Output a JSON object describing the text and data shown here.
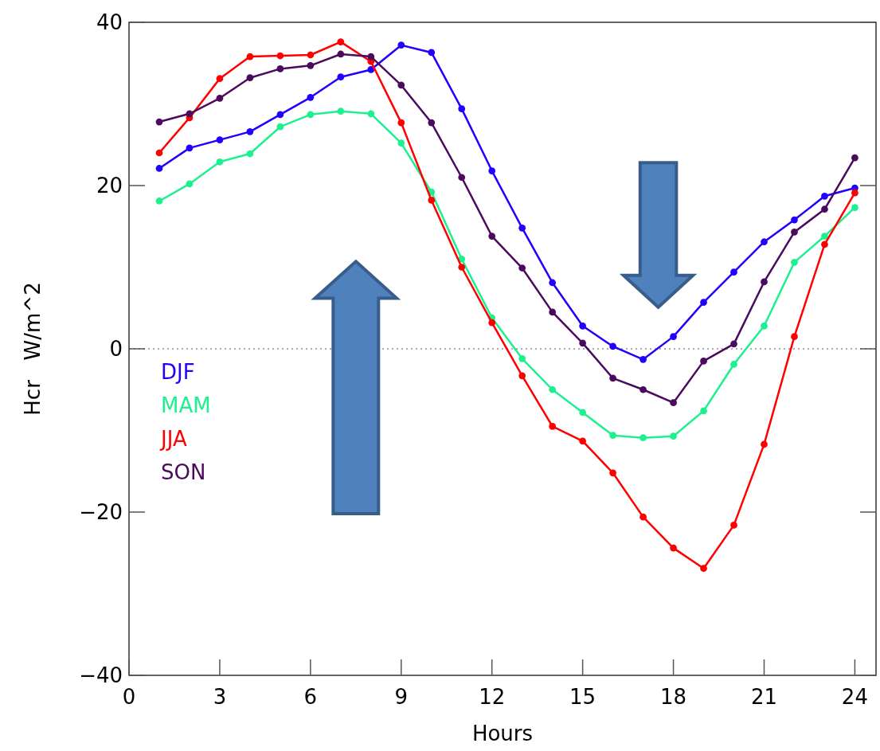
{
  "chart_data": {
    "type": "line",
    "xlabel": "Hours",
    "ylabel": "Hcr   W/m^2",
    "x": [
      1,
      2,
      3,
      4,
      5,
      6,
      7,
      8,
      9,
      10,
      11,
      12,
      13,
      14,
      15,
      16,
      17,
      18,
      19,
      20,
      21,
      22,
      23,
      24
    ],
    "xlim": [
      0,
      24.7
    ],
    "xticks": [
      0,
      3,
      6,
      9,
      12,
      15,
      18,
      21,
      24
    ],
    "ylim": [
      -40,
      40
    ],
    "yticks": [
      {
        "value": -40,
        "label": "−40"
      },
      {
        "value": -20,
        "label": "−20"
      },
      0,
      20,
      40
    ],
    "marker": "circle",
    "legend": "left",
    "grid": false,
    "ref_lines": [
      {
        "axis": "y",
        "value": 0,
        "line_style": "dotted",
        "color": "#555555"
      }
    ],
    "series": [
      {
        "name": "DJF",
        "color": "#2200ff",
        "values": [
          22.1,
          24.6,
          25.6,
          26.6,
          28.7,
          30.8,
          33.3,
          34.2,
          37.2,
          36.3,
          29.4,
          21.8,
          14.8,
          8.1,
          2.8,
          0.3,
          -1.3,
          1.5,
          5.7,
          9.4,
          13.1,
          15.8,
          18.7,
          19.7
        ]
      },
      {
        "name": "MAM",
        "color": "#1df08e",
        "values": [
          18.1,
          20.2,
          22.9,
          23.9,
          27.2,
          28.7,
          29.1,
          28.8,
          25.2,
          19.2,
          11.0,
          3.8,
          -1.2,
          -5.0,
          -7.8,
          -10.6,
          -10.9,
          -10.7,
          -7.6,
          -1.9,
          2.8,
          10.6,
          13.8,
          17.3
        ]
      },
      {
        "name": "JJA",
        "color": "#ff0000",
        "values": [
          24.0,
          28.3,
          33.1,
          35.8,
          35.9,
          36.0,
          37.6,
          35.2,
          27.7,
          18.2,
          10.0,
          3.2,
          -3.3,
          -9.5,
          -11.3,
          -15.2,
          -20.6,
          -24.4,
          -26.9,
          -21.6,
          -11.7,
          1.5,
          12.8,
          19.1
        ]
      },
      {
        "name": "SON",
        "color": "#4b0a5e",
        "values": [
          27.8,
          28.8,
          30.7,
          33.2,
          34.3,
          34.7,
          36.1,
          35.8,
          32.3,
          27.7,
          21.0,
          13.8,
          9.9,
          4.5,
          0.7,
          -3.6,
          -5.0,
          -6.6,
          -1.5,
          0.6,
          8.2,
          14.3,
          17.1,
          23.4
        ]
      }
    ]
  }
}
